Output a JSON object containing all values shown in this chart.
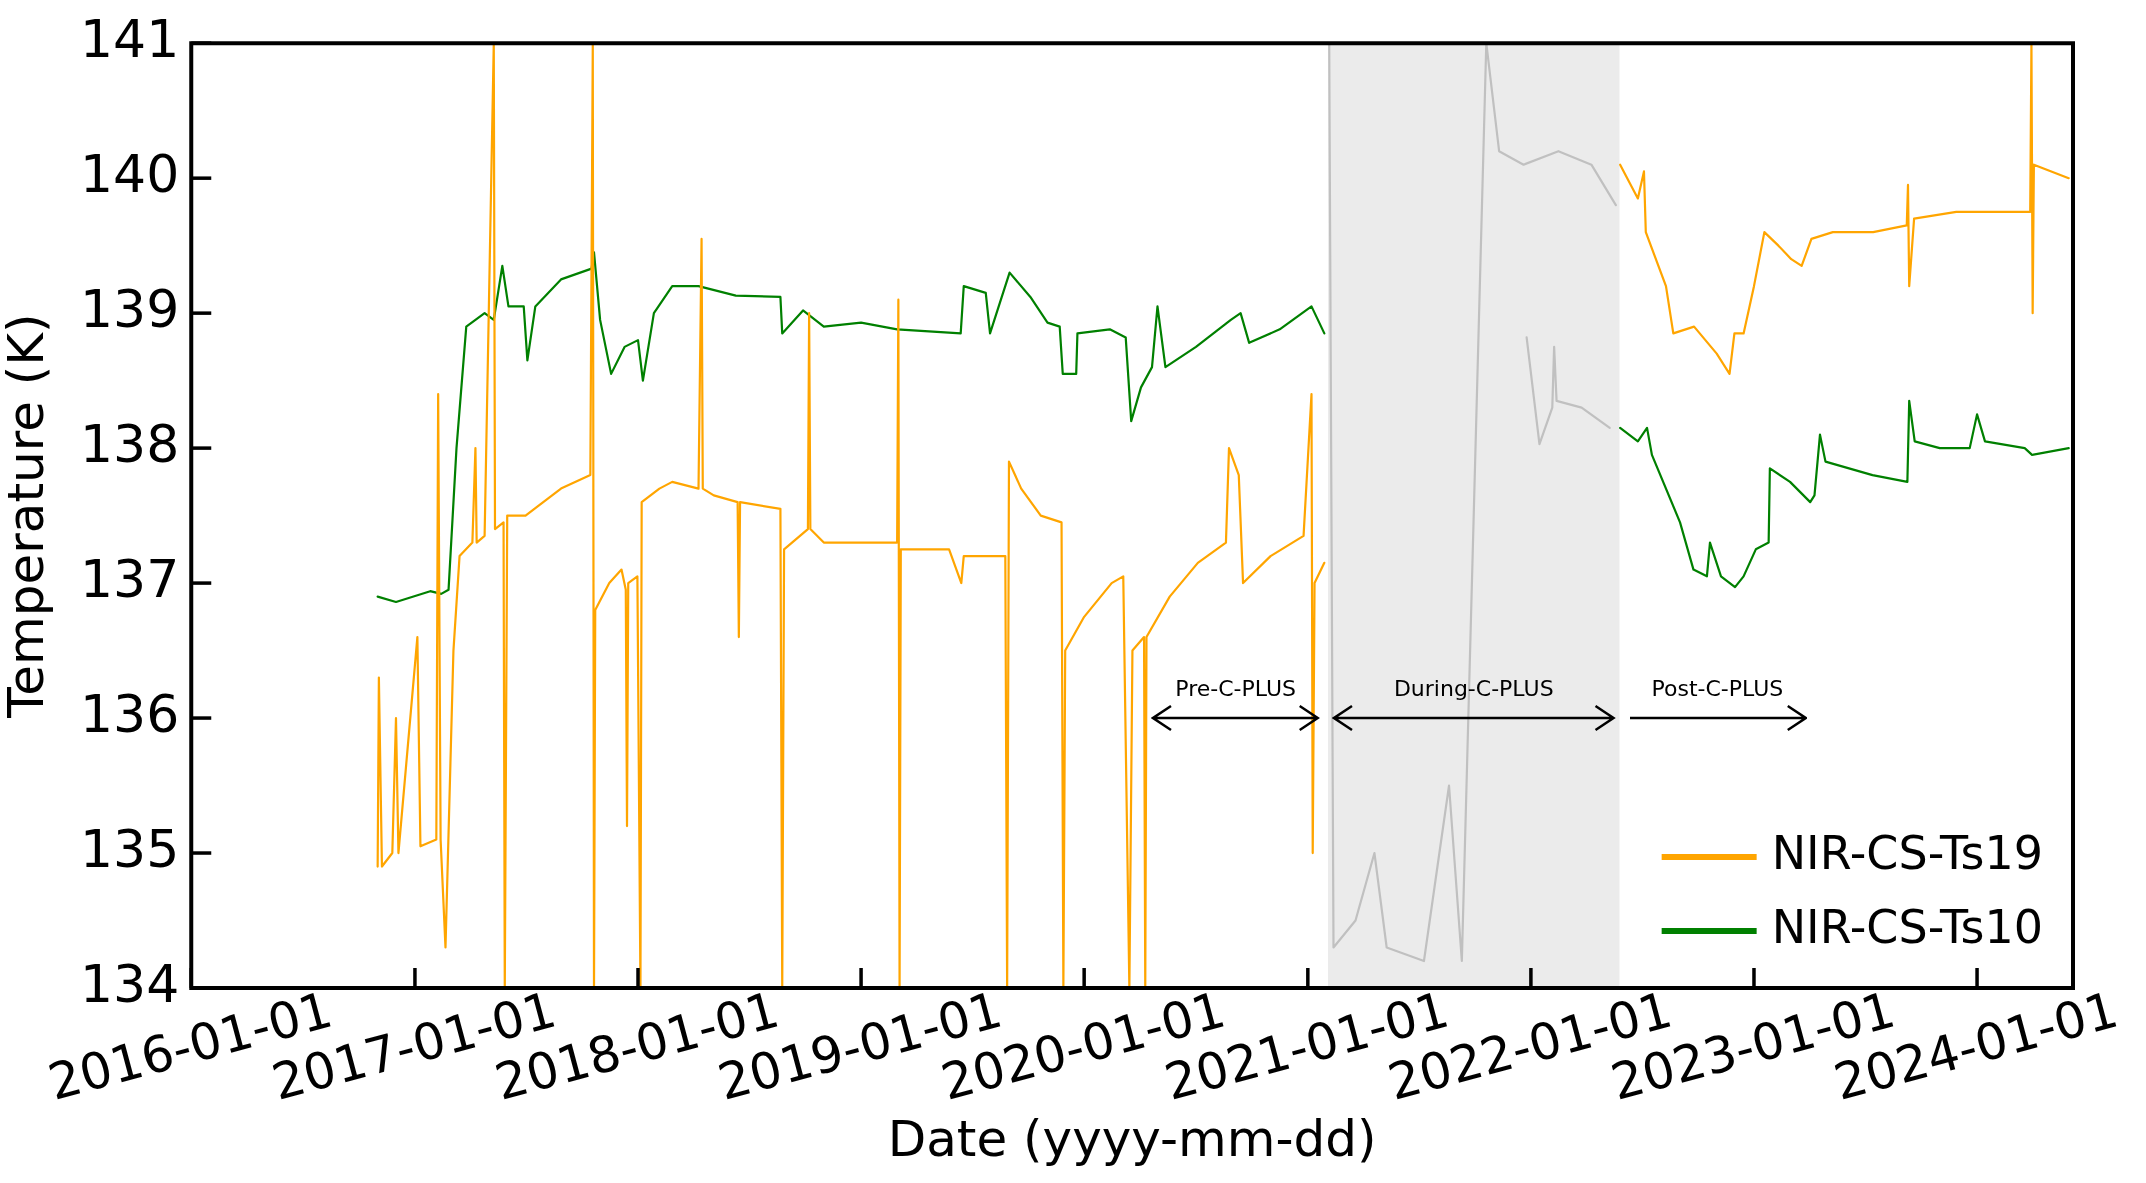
{
  "chart_data": {
    "type": "line",
    "xlabel": "Date (yyyy-mm-dd)",
    "ylabel": "Temperature (K)",
    "xlim": [
      "2016-01-01",
      "2024-06-06"
    ],
    "xticks": [
      "2016-01-01",
      "2017-01-01",
      "2018-01-01",
      "2019-01-01",
      "2020-01-01",
      "2021-01-01",
      "2022-01-01",
      "2023-01-01",
      "2024-01-01"
    ],
    "ylim": [
      134,
      141
    ],
    "yticks": [
      134,
      135,
      136,
      137,
      138,
      139,
      140,
      141
    ],
    "legend": "bottom right",
    "marker": "none",
    "line_style": "solid",
    "bands": [
      {
        "axis": "x",
        "from": "2021-02-03",
        "to": "2022-05-26",
        "label": "During-C-PLUS",
        "color": "#ebebeb"
      }
    ],
    "annotations": [
      "Pre-C-PLUS",
      "Post-C-PLUS"
    ],
    "series": [
      {
        "name": "NIR-CS-Ts19",
        "color": "#ffa500",
        "x": [
          "2016-11-01",
          "2016-11-03",
          "2016-11-08",
          "2016-11-25",
          "2016-12-01",
          "2016-12-05",
          "2017-01-05",
          "2017-01-10",
          "2017-02-05",
          "2017-02-08",
          "2017-02-12",
          "2017-02-20",
          "2017-03-05",
          "2017-03-15",
          "2017-04-05",
          "2017-04-10",
          "2017-04-12",
          "2017-04-25",
          "2017-05-10",
          "2017-05-12",
          "2017-05-26",
          "2017-05-28",
          "2017-06-01",
          "2017-07-01",
          "2017-08-28",
          "2017-10-15",
          "2017-10-19",
          "2017-10-21",
          "2017-10-23",
          "2017-11-15",
          "2017-12-05",
          "2017-12-12",
          "2017-12-14",
          "2017-12-16",
          "2017-12-31",
          "2018-01-05",
          "2018-01-07",
          "2018-02-05",
          "2018-02-26",
          "2018-04-10",
          "2018-04-15",
          "2018-04-17",
          "2018-05-05",
          "2018-06-13",
          "2018-06-15",
          "2018-06-17",
          "2018-08-22",
          "2018-08-25",
          "2018-08-28",
          "2018-10-06",
          "2018-10-08",
          "2018-10-10",
          "2018-11-01",
          "2019-01-01",
          "2019-03-01",
          "2019-03-03",
          "2019-03-05",
          "2019-03-07",
          "2019-05-25",
          "2019-06-14",
          "2019-06-18",
          "2019-08-25",
          "2019-08-28",
          "2019-08-31",
          "2019-09-20",
          "2019-10-22",
          "2019-11-25",
          "2019-11-28",
          "2019-12-01",
          "2020-01-01",
          "2020-02-15",
          "2020-03-05",
          "2020-03-15",
          "2020-03-20",
          "2020-04-08",
          "2020-04-10",
          "2020-04-12",
          "2020-05-20",
          "2020-07-05",
          "2020-08-20",
          "2020-08-25",
          "2020-09-10",
          "2020-09-17",
          "2020-11-01",
          "2020-12-25",
          "2021-01-07",
          "2021-01-09",
          "2021-01-12",
          "2021-01-28",
          "2021-06-01",
          "2022-05-27",
          "2022-06-25",
          "2022-07-05",
          "2022-07-08",
          "2022-08-10",
          "2022-08-22",
          "2022-09-25",
          "2022-11-01",
          "2022-11-22",
          "2022-11-30",
          "2022-12-15",
          "2023-01-01",
          "2023-01-18",
          "2023-02-10",
          "2023-03-03",
          "2023-03-20",
          "2023-04-05",
          "2023-05-10",
          "2023-07-15",
          "2023-09-08",
          "2023-09-10",
          "2023-09-12",
          "2023-09-20",
          "2023-11-28",
          "2023-12-31",
          "2024-03-28",
          "2024-03-30",
          "2024-04-01",
          "2024-04-03",
          "2024-05-30"
        ],
        "values": [
          134.9,
          136.3,
          134.9,
          135.0,
          136.0,
          135.0,
          136.6,
          135.05,
          135.1,
          138.4,
          135.1,
          134.3,
          136.5,
          137.2,
          137.3,
          138.0,
          137.3,
          137.35,
          141,
          137.4,
          137.45,
          134,
          137.5,
          137.5,
          137.7,
          137.8,
          141,
          134,
          136.8,
          137.0,
          137.1,
          136.95,
          135.2,
          137.0,
          137.05,
          134,
          137.6,
          137.7,
          137.75,
          137.7,
          139.55,
          137.7,
          137.65,
          137.6,
          136.6,
          137.6,
          137.55,
          134,
          137.25,
          137.4,
          139.0,
          137.4,
          137.3,
          137.3,
          137.3,
          139.1,
          134,
          137.25,
          137.25,
          137.0,
          137.2,
          137.2,
          134,
          137.9,
          137.7,
          137.5,
          137.45,
          134,
          136.5,
          136.75,
          137.0,
          137.05,
          134,
          136.5,
          136.6,
          134,
          136.6,
          136.9,
          137.15,
          137.3,
          138.0,
          137.8,
          137.0,
          137.2,
          137.35,
          138.4,
          135.0,
          137.0,
          137.15,
          null,
          140.1,
          139.85,
          140.05,
          139.6,
          139.2,
          138.85,
          138.9,
          138.7,
          138.55,
          138.85,
          138.85,
          139.2,
          139.6,
          139.5,
          139.4,
          139.35,
          139.55,
          139.6,
          139.6,
          139.65,
          139.95,
          139.2,
          139.7,
          139.75,
          139.75,
          139.75,
          141,
          139.0,
          140.1,
          140.0
        ]
      },
      {
        "name": "NIR-CS-Ts10",
        "color": "#008000",
        "x": [
          "2016-11-01",
          "2016-12-01",
          "2017-01-26",
          "2017-02-13",
          "2017-02-25",
          "2017-03-10",
          "2017-03-26",
          "2017-04-25",
          "2017-05-10",
          "2017-05-24",
          "2017-06-03",
          "2017-06-28",
          "2017-07-04",
          "2017-07-17",
          "2017-08-28",
          "2017-10-17",
          "2017-10-21",
          "2017-10-31",
          "2017-11-18",
          "2017-12-10",
          "2018-01-01",
          "2018-01-09",
          "2018-01-27",
          "2018-02-26",
          "2018-04-10",
          "2018-06-10",
          "2018-08-22",
          "2018-08-25",
          "2018-09-28",
          "2018-11-01",
          "2019-01-01",
          "2019-03-01",
          "2019-06-13",
          "2019-06-18",
          "2019-07-24",
          "2019-07-31",
          "2019-09-01",
          "2019-10-05",
          "2019-11-02",
          "2019-11-22",
          "2019-11-27",
          "2019-12-19",
          "2019-12-21",
          "2020-02-12",
          "2020-03-09",
          "2020-03-18",
          "2020-04-03",
          "2020-04-21",
          "2020-04-30",
          "2020-05-13",
          "2020-07-02",
          "2020-08-28",
          "2020-09-13",
          "2020-09-27",
          "2020-11-16",
          "2021-01-07",
          "2021-01-28",
          "2021-06-01",
          "2022-05-27",
          "2022-06-25",
          "2022-07-10",
          "2022-07-18",
          "2022-09-02",
          "2022-09-24",
          "2022-10-16",
          "2022-10-21",
          "2022-11-08",
          "2022-12-01",
          "2022-12-15",
          "2023-01-04",
          "2023-01-25",
          "2023-01-27",
          "2023-03-01",
          "2023-04-03",
          "2023-04-10",
          "2023-04-19",
          "2023-04-28",
          "2023-07-14",
          "2023-09-09",
          "2023-09-12",
          "2023-09-21",
          "2023-11-01",
          "2023-12-20",
          "2024-01-01",
          "2024-01-14",
          "2024-03-19",
          "2024-03-31",
          "2024-05-30"
        ],
        "values": [
          136.9,
          136.86,
          136.94,
          136.92,
          136.95,
          138.0,
          138.9,
          139.0,
          138.95,
          139.35,
          139.05,
          139.05,
          138.65,
          139.05,
          139.25,
          139.33,
          139.45,
          138.95,
          138.55,
          138.75,
          138.8,
          138.5,
          139.0,
          139.2,
          139.2,
          139.13,
          139.12,
          138.85,
          139.02,
          138.9,
          138.93,
          138.88,
          138.85,
          139.2,
          139.15,
          138.85,
          139.3,
          139.12,
          138.93,
          138.9,
          138.55,
          138.55,
          138.85,
          138.88,
          138.82,
          138.2,
          138.45,
          138.6,
          139.05,
          138.6,
          138.75,
          138.95,
          139.0,
          138.78,
          138.88,
          139.05,
          138.85,
          null,
          138.15,
          138.05,
          138.15,
          137.95,
          137.45,
          137.1,
          137.05,
          137.3,
          137.05,
          136.97,
          137.05,
          137.25,
          137.3,
          137.85,
          137.75,
          137.6,
          137.65,
          138.1,
          137.9,
          137.8,
          137.75,
          138.35,
          138.05,
          138.0,
          138.0,
          138.25,
          138.05,
          138.0,
          137.95,
          138.0
        ]
      },
      {
        "color": "#c0c0c0",
        "x": [
          "2021-02-05",
          "2021-02-12",
          "2021-03-20",
          "2021-04-20",
          "2021-05-10",
          "2021-07-10",
          "2021-08-20",
          "2021-09-10",
          "2021-10-20",
          "2021-11-10",
          "2021-12-20",
          "2022-02-15",
          "2022-04-10",
          "2022-05-20"
        ],
        "values": [
          141,
          134.3,
          134.5,
          135.0,
          134.3,
          134.2,
          135.5,
          134.2,
          141,
          140.2,
          140.1,
          140.2,
          140.1,
          139.8
        ]
      },
      {
        "color": "#c0c0c0",
        "x": [
          "2021-12-25",
          "2022-01-15",
          "2022-02-05",
          "2022-02-08",
          "2022-02-12",
          "2022-03-25",
          "2022-05-10"
        ],
        "values": [
          138.82,
          138.03,
          138.3,
          138.75,
          138.35,
          138.3,
          138.15
        ]
      }
    ]
  }
}
